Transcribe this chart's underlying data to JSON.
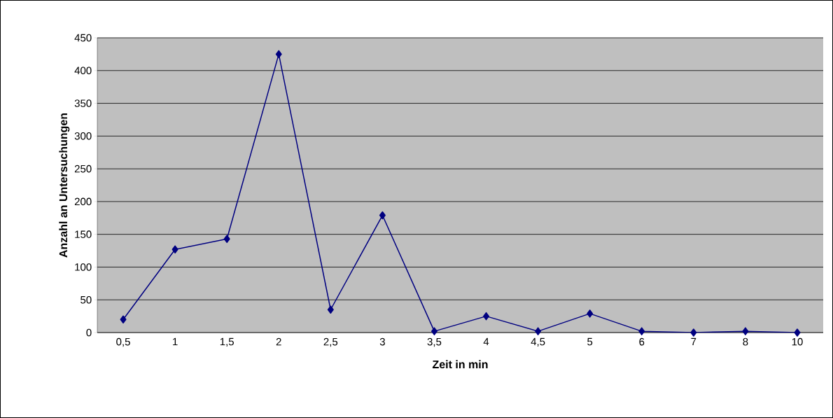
{
  "chart_data": {
    "type": "line",
    "xlabel": "Zeit in min",
    "ylabel": "Anzahl an Untersuchungen",
    "categories": [
      "0,5",
      "1",
      "1,5",
      "2",
      "2,5",
      "3",
      "3,5",
      "4",
      "4,5",
      "5",
      "6",
      "7",
      "8",
      "10"
    ],
    "series": [
      {
        "color": "#000080",
        "values": [
          20,
          127,
          143,
          425,
          35,
          179,
          2,
          25,
          2,
          29,
          2,
          0,
          2,
          0
        ]
      }
    ],
    "ylim": [
      0,
      450
    ],
    "yticks": [
      0,
      50,
      100,
      150,
      200,
      250,
      300,
      350,
      400,
      450
    ],
    "grid": "y",
    "marker": "diamond"
  }
}
